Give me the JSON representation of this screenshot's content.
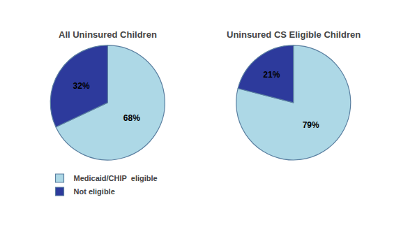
{
  "chart_data": [
    {
      "type": "pie",
      "title": "All Uninsured Children",
      "categories": [
        "Medicaid/CHIP  eligible",
        "Not eligible"
      ],
      "values": [
        68,
        32
      ],
      "value_labels": [
        "68%",
        "32%"
      ],
      "colors": [
        "#add8e6",
        "#2d3a9c"
      ],
      "data_labels": true,
      "legend": "lower left"
    },
    {
      "type": "pie",
      "title": "Uninsured CS Eligible Children",
      "categories": [
        "Medicaid/CHIP  eligible",
        "Not eligible"
      ],
      "values": [
        79,
        21
      ],
      "value_labels": [
        "79%",
        "21%"
      ],
      "colors": [
        "#add8e6",
        "#2d3a9c"
      ],
      "data_labels": true,
      "legend": "lower left"
    }
  ]
}
